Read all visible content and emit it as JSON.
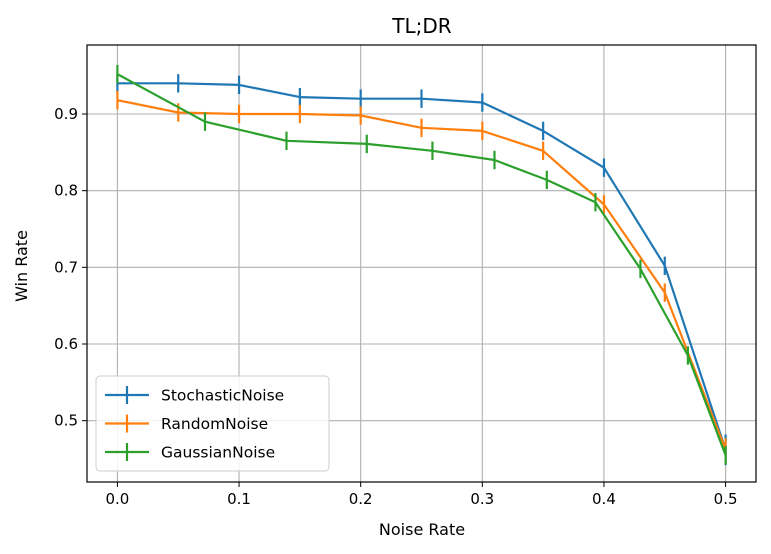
{
  "chart_data": {
    "type": "line",
    "title": "TL;DR",
    "xlabel": "Noise Rate",
    "ylabel": "Win Rate",
    "xlim": [
      -0.025,
      0.525
    ],
    "ylim": [
      0.42,
      0.99
    ],
    "xticks": [
      "0.0",
      "0.1",
      "0.2",
      "0.3",
      "0.4",
      "0.5"
    ],
    "yticks": [
      "0.5",
      "0.6",
      "0.7",
      "0.8",
      "0.9"
    ],
    "grid": true,
    "legend_position": "lower-left",
    "series": [
      {
        "name": "StochasticNoise",
        "color": "#1f77b4",
        "x": [
          0.0,
          0.05,
          0.1,
          0.15,
          0.2,
          0.25,
          0.3,
          0.35,
          0.4,
          0.45,
          0.5
        ],
        "y": [
          0.94,
          0.94,
          0.938,
          0.922,
          0.92,
          0.92,
          0.915,
          0.878,
          0.83,
          0.702,
          0.462
        ],
        "err": [
          0.012,
          0.012,
          0.012,
          0.012,
          0.012,
          0.012,
          0.012,
          0.012,
          0.012,
          0.012,
          0.02
        ]
      },
      {
        "name": "RandomNoise",
        "color": "#ff7f0e",
        "x": [
          0.0,
          0.05,
          0.1,
          0.15,
          0.2,
          0.25,
          0.3,
          0.35,
          0.4,
          0.45,
          0.5
        ],
        "y": [
          0.918,
          0.902,
          0.9,
          0.9,
          0.898,
          0.882,
          0.878,
          0.852,
          0.782,
          0.667,
          0.462
        ],
        "err": [
          0.012,
          0.012,
          0.012,
          0.012,
          0.012,
          0.012,
          0.012,
          0.012,
          0.012,
          0.012,
          0.015
        ]
      },
      {
        "name": "GaussianNoise",
        "color": "#2ca02c",
        "x": [
          0.0,
          0.072,
          0.139,
          0.205,
          0.259,
          0.31,
          0.353,
          0.393,
          0.43,
          0.469,
          0.5
        ],
        "y": [
          0.952,
          0.89,
          0.865,
          0.861,
          0.852,
          0.84,
          0.814,
          0.785,
          0.698,
          0.585,
          0.455
        ],
        "err": [
          0.012,
          0.012,
          0.012,
          0.012,
          0.012,
          0.012,
          0.012,
          0.012,
          0.012,
          0.012,
          0.012
        ]
      }
    ]
  }
}
